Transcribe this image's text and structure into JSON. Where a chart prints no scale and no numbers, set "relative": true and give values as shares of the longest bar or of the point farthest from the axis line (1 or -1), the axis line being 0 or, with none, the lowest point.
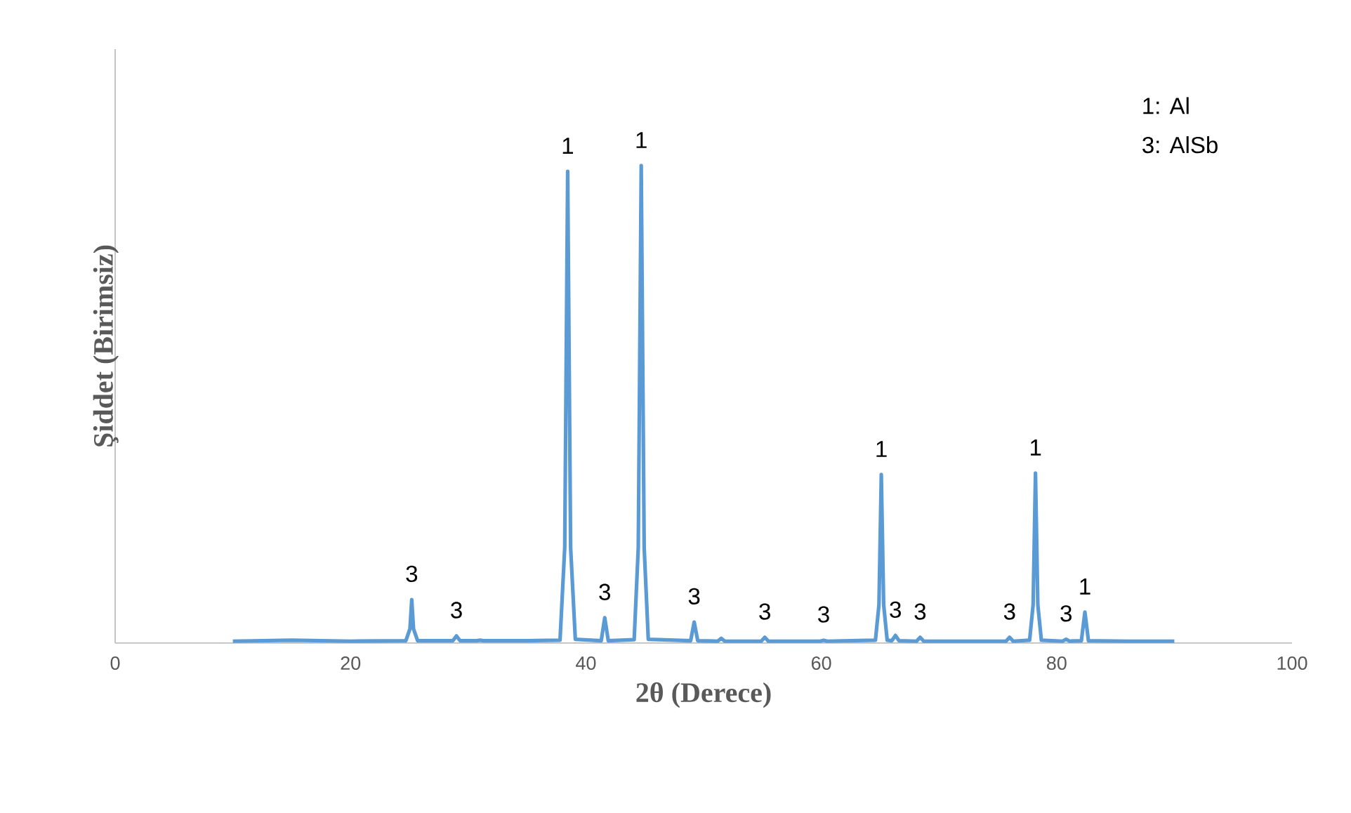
{
  "chart_data": {
    "type": "line",
    "relative": true,
    "xlabel": "2θ (Derece)",
    "ylabel": "Şiddet (Birimsiz)",
    "xlim": [
      0,
      100
    ],
    "xticks": [
      0,
      20,
      40,
      60,
      80,
      100
    ],
    "series": [
      {
        "color": "#5b9bd5",
        "x": [
          10,
          15,
          20,
          24.7,
          25.05,
          25.2,
          25.35,
          25.7,
          28.7,
          29.0,
          29.3,
          30.7,
          31.0,
          31.3,
          35,
          37.8,
          38.2,
          38.45,
          38.7,
          39.1,
          41.3,
          41.6,
          41.9,
          44.1,
          44.45,
          44.7,
          44.95,
          45.3,
          48.9,
          49.2,
          49.5,
          51.2,
          51.5,
          51.8,
          54.9,
          55.2,
          55.5,
          59.9,
          60.2,
          60.5,
          64.6,
          64.9,
          65.1,
          65.3,
          65.6,
          66.0,
          66.3,
          66.6,
          68.1,
          68.4,
          68.7,
          72,
          75.7,
          76.0,
          76.3,
          77.7,
          78.0,
          78.2,
          78.4,
          78.7,
          80.5,
          80.8,
          81.1,
          82.1,
          82.4,
          82.7,
          86,
          90
        ],
        "values": [
          0.004,
          0.006,
          0.004,
          0.005,
          0.03,
          0.091,
          0.03,
          0.005,
          0.005,
          0.015,
          0.005,
          0.005,
          0.006,
          0.005,
          0.005,
          0.006,
          0.2,
          0.988,
          0.2,
          0.008,
          0.005,
          0.053,
          0.005,
          0.007,
          0.2,
          1,
          0.2,
          0.008,
          0.005,
          0.044,
          0.005,
          0.004,
          0.01,
          0.004,
          0.004,
          0.012,
          0.004,
          0.004,
          0.006,
          0.004,
          0.006,
          0.08,
          0.353,
          0.08,
          0.006,
          0.005,
          0.016,
          0.005,
          0.004,
          0.012,
          0.004,
          0.004,
          0.004,
          0.012,
          0.004,
          0.006,
          0.08,
          0.356,
          0.08,
          0.006,
          0.004,
          0.008,
          0.004,
          0.005,
          0.065,
          0.005,
          0.004,
          0.004
        ]
      }
    ],
    "annotations": [
      "1: Al",
      "3: AlSb",
      {
        "text": "3",
        "x": 25.2,
        "y": 0.091
      },
      {
        "text": "3",
        "x": 29.0,
        "y": 0.015
      },
      {
        "text": "1",
        "x": 38.45,
        "y": 0.988
      },
      {
        "text": "3",
        "x": 41.6,
        "y": 0.053
      },
      {
        "text": "1",
        "x": 44.7,
        "y": 1
      },
      {
        "text": "3",
        "x": 49.2,
        "y": 0.044
      },
      {
        "text": "3",
        "x": 55.2,
        "y": 0.012
      },
      {
        "text": "3",
        "x": 60.2,
        "y": 0.006
      },
      {
        "text": "1",
        "x": 65.1,
        "y": 0.353
      },
      {
        "text": "3",
        "x": 66.3,
        "y": 0.016
      },
      {
        "text": "3",
        "x": 68.4,
        "y": 0.012
      },
      {
        "text": "3",
        "x": 76.0,
        "y": 0.012
      },
      {
        "text": "1",
        "x": 78.2,
        "y": 0.356
      },
      {
        "text": "3",
        "x": 80.8,
        "y": 0.008
      },
      {
        "text": "1",
        "x": 82.4,
        "y": 0.065
      }
    ]
  }
}
